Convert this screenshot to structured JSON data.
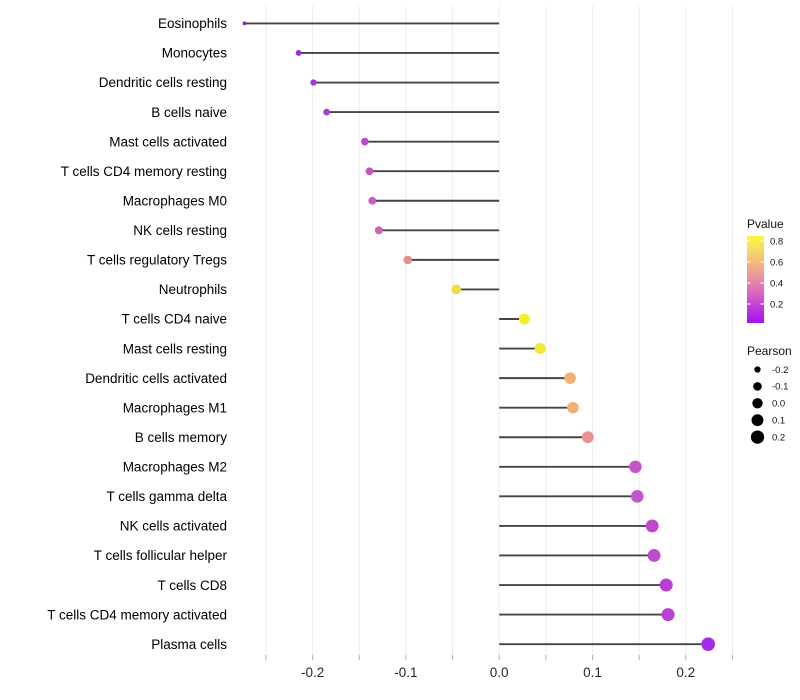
{
  "chart_data": {
    "type": "scatter",
    "style_variant": "lollipop",
    "title": "",
    "xlabel": "",
    "ylabel": "",
    "xlim": [
      -0.297,
      0.249
    ],
    "x_ticks": [
      -0.2,
      -0.1,
      0.0,
      0.1,
      0.2
    ],
    "x_tick_labels": [
      "-0.2",
      "-0.1",
      "0.0",
      "0.1",
      "0.2"
    ],
    "minor_tick_step": 0.05,
    "grid": "vertical-only",
    "points": [
      {
        "label": "Eosinophils",
        "pearson": -0.273,
        "pvalue_approx": 0.09,
        "color": "#8E22DC"
      },
      {
        "label": "Monocytes",
        "pearson": -0.215,
        "pvalue_approx": 0.12,
        "color": "#9730DB"
      },
      {
        "label": "Dendritic cells resting",
        "pearson": -0.199,
        "pvalue_approx": 0.15,
        "color": "#A038D6"
      },
      {
        "label": "B cells naive",
        "pearson": -0.185,
        "pvalue_approx": 0.18,
        "color": "#A83ECF"
      },
      {
        "label": "Mast cells activated",
        "pearson": -0.144,
        "pvalue_approx": 0.26,
        "color": "#BE4BC6"
      },
      {
        "label": "T cells CD4 memory resting",
        "pearson": -0.139,
        "pvalue_approx": 0.28,
        "color": "#C254C4"
      },
      {
        "label": "Macrophages M0",
        "pearson": -0.136,
        "pvalue_approx": 0.3,
        "color": "#C55CC0"
      },
      {
        "label": "NK cells resting",
        "pearson": -0.129,
        "pvalue_approx": 0.33,
        "color": "#C966BA"
      },
      {
        "label": "T cells regulatory  Tregs",
        "pearson": -0.098,
        "pvalue_approx": 0.52,
        "color": "#E48F89"
      },
      {
        "label": "Neutrophils",
        "pearson": -0.046,
        "pvalue_approx": 0.74,
        "color": "#F0DC44"
      },
      {
        "label": "T cells CD4 naive",
        "pearson": 0.027,
        "pvalue_approx": 0.81,
        "color": "#F5EF25"
      },
      {
        "label": "Mast cells resting",
        "pearson": 0.044,
        "pvalue_approx": 0.78,
        "color": "#F3E932"
      },
      {
        "label": "Dendritic cells activated",
        "pearson": 0.076,
        "pvalue_approx": 0.62,
        "color": "#F2B171"
      },
      {
        "label": "Macrophages M1",
        "pearson": 0.079,
        "pvalue_approx": 0.62,
        "color": "#F2B074"
      },
      {
        "label": "B cells memory",
        "pearson": 0.095,
        "pvalue_approx": 0.55,
        "color": "#E99390"
      },
      {
        "label": "Macrophages M2",
        "pearson": 0.146,
        "pvalue_approx": 0.28,
        "color": "#C654C9"
      },
      {
        "label": "T cells gamma delta",
        "pearson": 0.148,
        "pvalue_approx": 0.28,
        "color": "#C656CA"
      },
      {
        "label": "NK cells activated",
        "pearson": 0.164,
        "pvalue_approx": 0.24,
        "color": "#BF49CE"
      },
      {
        "label": "T cells follicular helper",
        "pearson": 0.166,
        "pvalue_approx": 0.24,
        "color": "#BF4ACE"
      },
      {
        "label": "T cells CD8",
        "pearson": 0.179,
        "pvalue_approx": 0.21,
        "color": "#B93FD4"
      },
      {
        "label": "T cells CD4 memory activated",
        "pearson": 0.181,
        "pvalue_approx": 0.21,
        "color": "#B940D4"
      },
      {
        "label": "Plasma cells",
        "pearson": 0.224,
        "pvalue_approx": 0.06,
        "color": "#A52BEA"
      }
    ],
    "legend": {
      "pvalue": {
        "title": "Pvalue",
        "tick_values": [
          0.8,
          0.6,
          0.4,
          0.2
        ],
        "tick_labels": [
          "0.8",
          "0.6",
          "0.4",
          "0.2"
        ],
        "gradient": [
          {
            "offset": 0.0,
            "color": "#FCF735"
          },
          {
            "offset": 0.14,
            "color": "#F8DE60"
          },
          {
            "offset": 0.3,
            "color": "#F4BA7C"
          },
          {
            "offset": 0.44,
            "color": "#ED9997"
          },
          {
            "offset": 0.57,
            "color": "#E27BB1"
          },
          {
            "offset": 0.7,
            "color": "#D25BC8"
          },
          {
            "offset": 0.84,
            "color": "#BB36DC"
          },
          {
            "offset": 1.0,
            "color": "#A412F2"
          }
        ]
      },
      "pearson": {
        "title": "Pearson",
        "size_values": [
          -0.2,
          -0.1,
          0.0,
          0.1,
          0.2
        ],
        "size_labels": [
          "-0.2",
          "-0.1",
          "0.0",
          "0.1",
          "0.2"
        ],
        "dot_color": "#000000"
      }
    },
    "style": {
      "stem_color": "#454545",
      "grid_color": "#ededed",
      "tick_color": "#b0b0b0",
      "axis_text_color": "#262626",
      "label_text_color": "#000000"
    }
  }
}
